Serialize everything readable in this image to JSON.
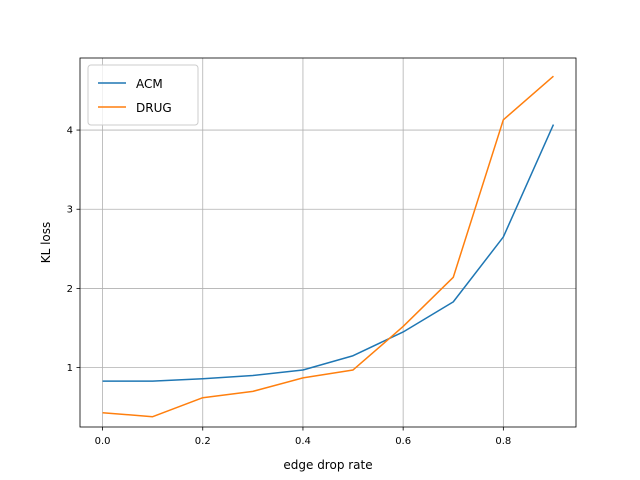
{
  "chart_data": {
    "type": "line",
    "title": "",
    "xlabel": "edge drop rate",
    "ylabel": "KL loss",
    "xlim": [
      -0.045,
      0.945
    ],
    "ylim": [
      0.25,
      4.91
    ],
    "xticks": [
      0.0,
      0.2,
      0.4,
      0.6,
      0.8
    ],
    "xtick_labels": [
      "0.0",
      "0.2",
      "0.4",
      "0.6",
      "0.8"
    ],
    "yticks": [
      1,
      2,
      3,
      4
    ],
    "ytick_labels": [
      "1",
      "2",
      "3",
      "4"
    ],
    "grid": true,
    "legend_position": "top-left",
    "x": [
      0.0,
      0.1,
      0.2,
      0.3,
      0.4,
      0.5,
      0.6,
      0.7,
      0.8,
      0.9
    ],
    "series": [
      {
        "name": "ACM",
        "color": "#1f77b4",
        "values": [
          0.83,
          0.83,
          0.86,
          0.9,
          0.97,
          1.15,
          1.45,
          1.83,
          2.65,
          4.07
        ]
      },
      {
        "name": "DRUG",
        "color": "#ff7f0e",
        "values": [
          0.43,
          0.38,
          0.62,
          0.7,
          0.87,
          0.97,
          1.52,
          2.14,
          4.13,
          4.68
        ]
      }
    ]
  }
}
